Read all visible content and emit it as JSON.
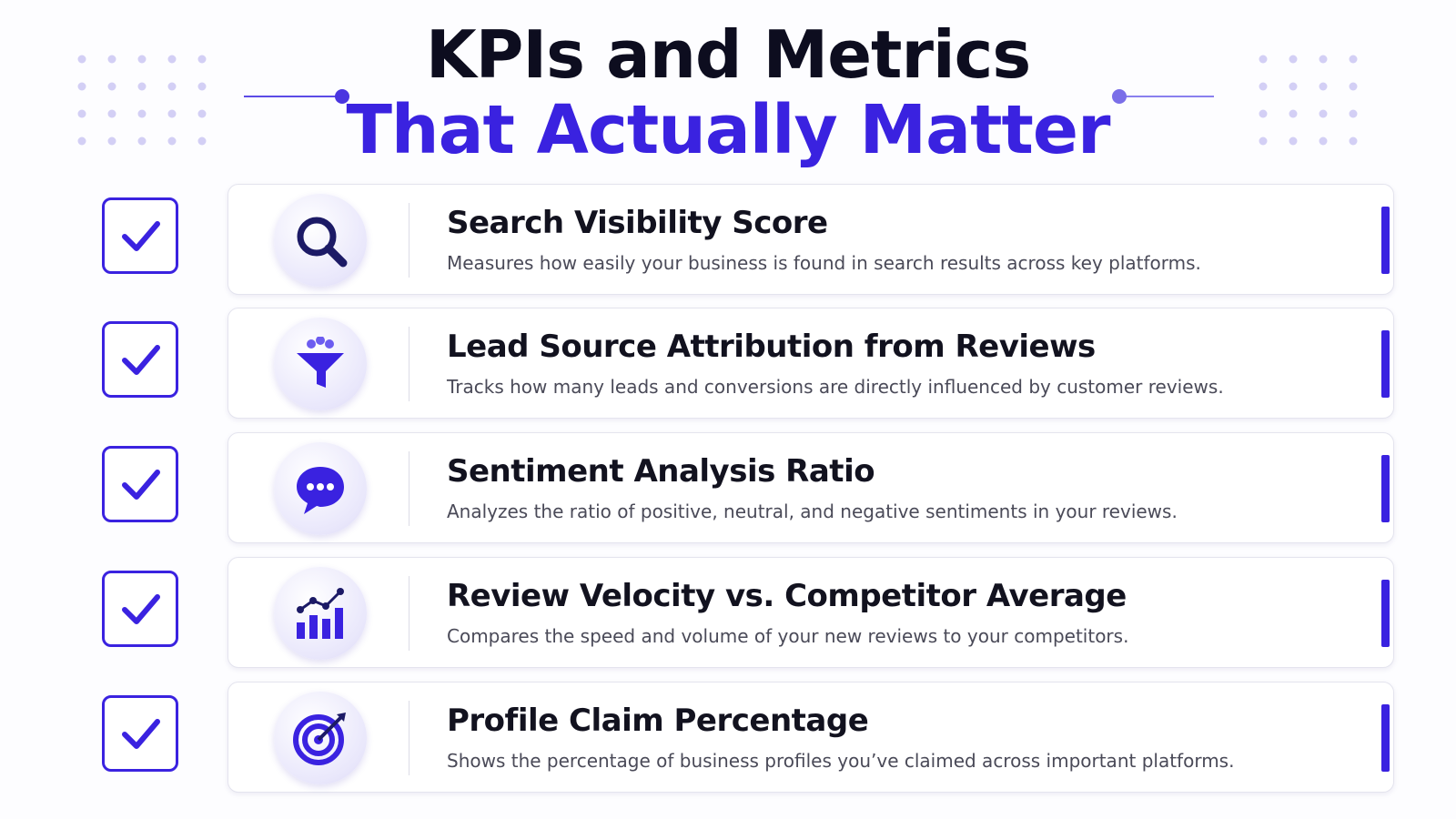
{
  "header": {
    "title_line1": "KPIs and Metrics",
    "title_line2": "That Actually Matter"
  },
  "items": [
    {
      "title": "Search Visibility Score",
      "description": "Measures how easily your business is found in search results across key platforms."
    },
    {
      "title": "Lead Source Attribution from Reviews",
      "description": "Tracks how many leads and conversions are directly influenced by customer reviews."
    },
    {
      "title": "Sentiment Analysis Ratio",
      "description": "Analyzes the ratio of positive, neutral, and negative sentiments in your reviews."
    },
    {
      "title": "Review Velocity vs. Competitor Average",
      "description": "Compares the speed and volume of your new reviews to your competitors."
    },
    {
      "title": "Profile Claim Percentage",
      "description": "Shows the percentage of business profiles you’ve claimed across important platforms."
    }
  ]
}
